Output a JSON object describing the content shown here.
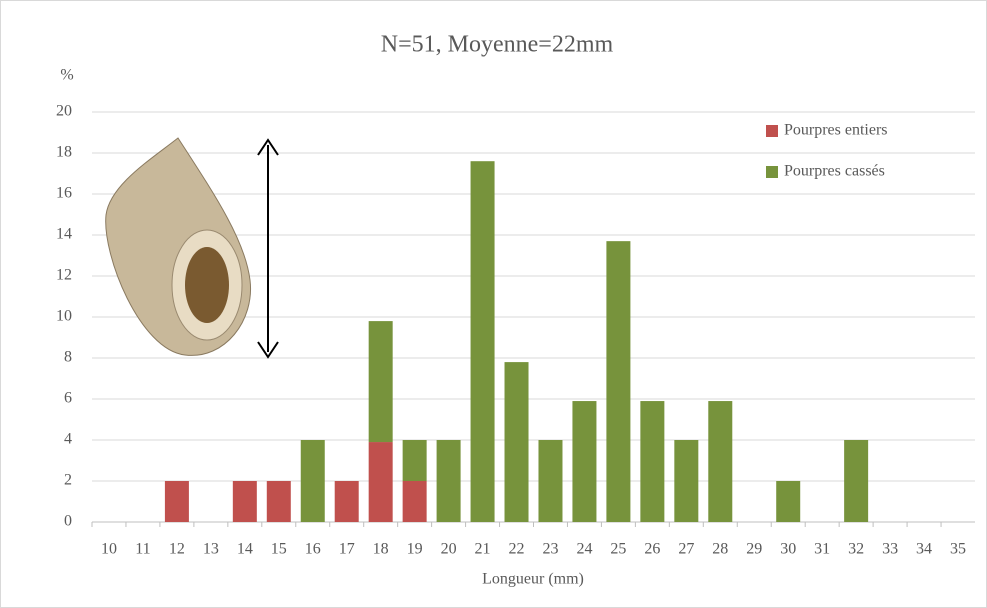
{
  "chart_data": {
    "type": "stacked_bar",
    "title": "N=51, Moyenne=22mm",
    "y_label": "%",
    "x_label": "Longueur (mm)",
    "categories": [
      "10",
      "11",
      "12",
      "13",
      "14",
      "15",
      "16",
      "17",
      "18",
      "19",
      "20",
      "21",
      "22",
      "23",
      "24",
      "25",
      "26",
      "27",
      "28",
      "29",
      "30",
      "31",
      "32",
      "33",
      "34",
      "35"
    ],
    "series": [
      {
        "name": "Pourpres entiers",
        "color": "#c0504d",
        "values": [
          0,
          0,
          2,
          0,
          2,
          2,
          0,
          2,
          3.9,
          2,
          0,
          0,
          0,
          0,
          0,
          0,
          0,
          0,
          0,
          0,
          0,
          0,
          0,
          0,
          0,
          0
        ]
      },
      {
        "name": "Pourpres cassés",
        "color": "#77933c",
        "values": [
          0,
          0,
          0,
          0,
          0,
          0,
          4,
          0,
          5.9,
          2,
          4,
          17.6,
          7.8,
          4,
          5.9,
          13.7,
          5.9,
          4,
          5.9,
          0,
          2,
          0,
          4,
          0,
          0,
          0
        ]
      }
    ],
    "ylim": [
      0,
      20
    ],
    "yticks": [
      0,
      2,
      4,
      6,
      8,
      10,
      12,
      14,
      16,
      18,
      20
    ],
    "grid": true,
    "legend": "top-right"
  }
}
